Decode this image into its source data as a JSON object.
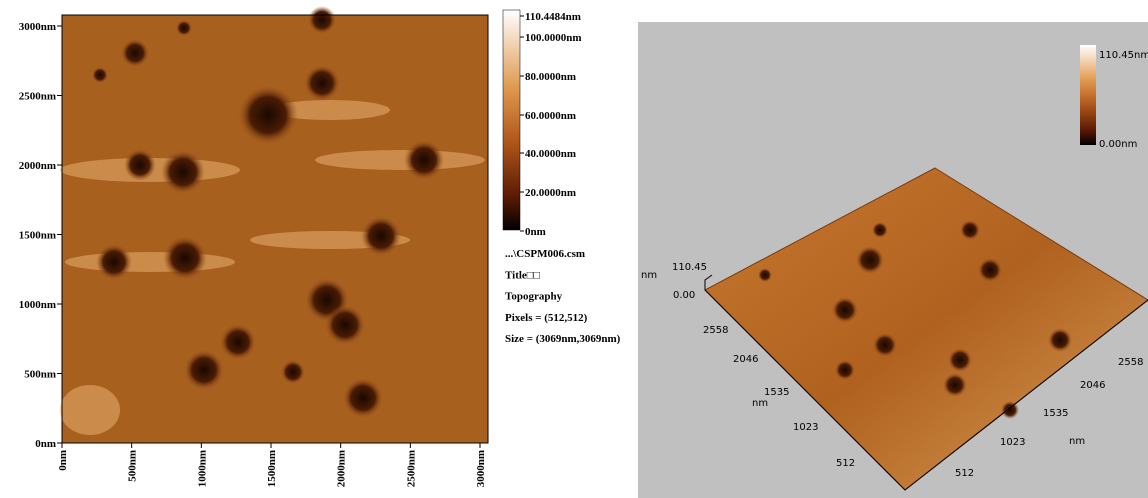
{
  "left_panel": {
    "y_ticks": [
      "3000nm",
      "2500nm",
      "2000nm",
      "1500nm",
      "1000nm",
      "500nm",
      "0nm"
    ],
    "x_ticks": [
      "0nm",
      "500nm",
      "1000nm",
      "1500nm",
      "2000nm",
      "2500nm",
      "3000nm"
    ],
    "colorbar": [
      "110.4484nm",
      "100.0000nm",
      "80.0000nm",
      "60.0000nm",
      "40.0000nm",
      "20.0000nm",
      "0nm"
    ],
    "info": [
      "...\\CSPM006.csm",
      "Title□□",
      "Topography",
      "Pixels = (512,512)",
      "Size = (3069nm,3069nm)"
    ]
  },
  "right_panel": {
    "colorbar": [
      "110.45nm",
      "0.00nm"
    ],
    "z_axis": [
      "110.45",
      "nm",
      "0.00"
    ],
    "left_axis": [
      "2558",
      "2046",
      "1535",
      "nm",
      "1023",
      "512"
    ],
    "right_axis": [
      "2558",
      "2046",
      "1535",
      "nm",
      "1023",
      "512"
    ]
  }
}
